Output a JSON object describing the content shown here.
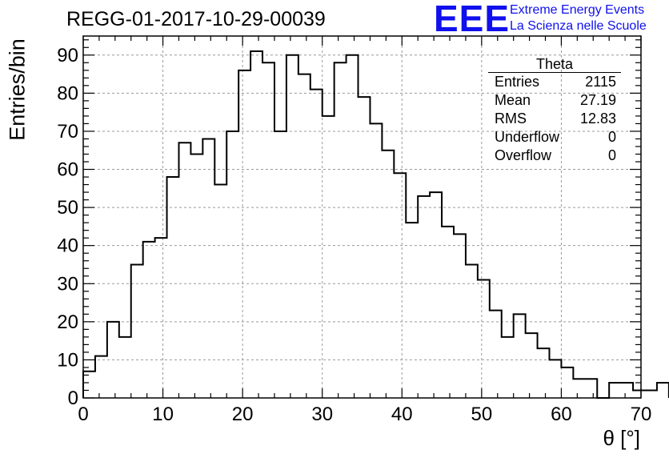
{
  "title": "REGG-01-2017-10-29-00039",
  "logo": {
    "text": "EEE",
    "line1": "Extreme Energy Events",
    "line2": "La Scienza nelle Scuole",
    "color": "#1010ee"
  },
  "stats": {
    "title": "Theta",
    "rows": [
      {
        "label": "Entries",
        "value": "2115"
      },
      {
        "label": "Mean",
        "value": "27.19"
      },
      {
        "label": "RMS",
        "value": "12.83"
      },
      {
        "label": "Underflow",
        "value": "0"
      },
      {
        "label": "Overflow",
        "value": "0"
      }
    ]
  },
  "chart_data": {
    "type": "histogram",
    "xlabel": "θ [°]",
    "ylabel": "Entries/bin",
    "xlim": [
      0,
      70
    ],
    "ylim": [
      0,
      95
    ],
    "grid": true,
    "bin_width": 1.5,
    "bin_start": 0,
    "values": [
      7,
      11,
      20,
      16,
      35,
      41,
      42,
      58,
      67,
      64,
      68,
      56,
      70,
      86,
      91,
      88,
      70,
      90,
      85,
      81,
      74,
      88,
      90,
      79,
      72,
      65,
      59,
      46,
      53,
      54,
      45,
      43,
      35,
      31,
      23,
      16,
      22,
      17,
      13,
      10,
      8,
      5,
      5,
      0,
      4,
      4,
      2,
      2,
      4
    ],
    "x_ticks": [
      "0",
      "10",
      "20",
      "30",
      "40",
      "50",
      "60",
      "70"
    ],
    "y_ticks": [
      "0",
      "10",
      "20",
      "30",
      "40",
      "50",
      "60",
      "70",
      "80",
      "90"
    ]
  }
}
